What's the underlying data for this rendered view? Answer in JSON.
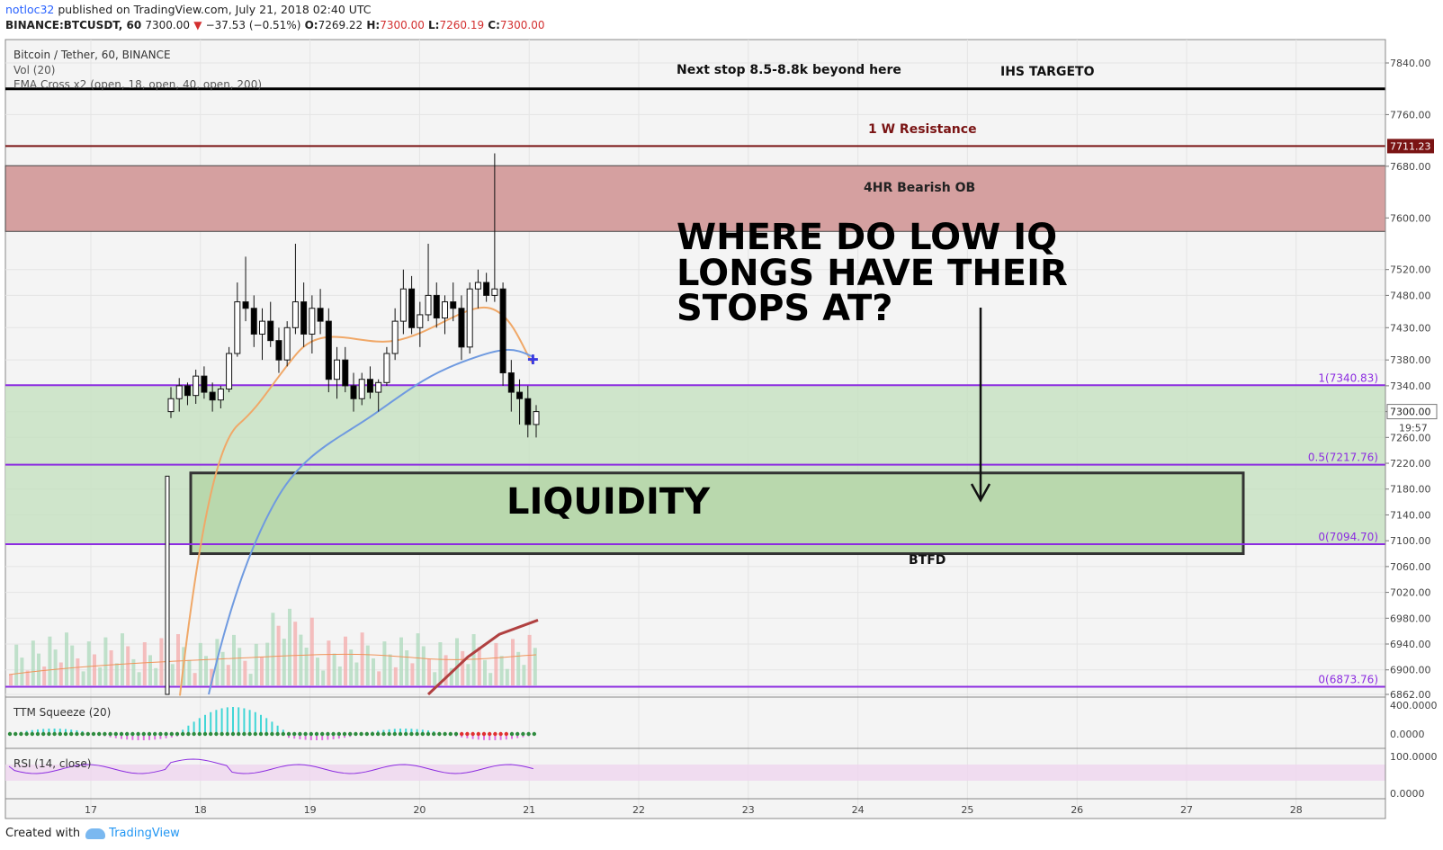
{
  "header": {
    "author": "notloc32",
    "published": "published on TradingView.com, July 21, 2018 02:40 UTC"
  },
  "ohlc": {
    "symbol": "BINANCE:BTCUSDT, 60",
    "last": "7300.00",
    "change": "−37.53 (−0.51%)",
    "o_label": "O:",
    "o": "7269.22",
    "h_label": "H:",
    "h": "7300.00",
    "l_label": "L:",
    "l": "7260.19",
    "c_label": "C:",
    "c": "7300.00"
  },
  "legend": {
    "title": "Bitcoin / Tether, 60, BINANCE",
    "vol": "Vol (20)",
    "ema": "EMA Cross x2 (open, 18, open, 40, open, 200)",
    "ttm": "TTM Squeeze (20)",
    "rsi": "RSI (14, close)"
  },
  "footer": {
    "created": "Created with",
    "brand": "TradingView"
  },
  "colors": {
    "candle_up": "#ffffff",
    "candle_down": "#000000",
    "ema_fast": "#f0a868",
    "ema_mid": "#6f9ae0",
    "ema_slow": "#b04040",
    "fib": "#8c2ce0",
    "resistance": "#7a1414",
    "ob_zone": "#d5a0a0",
    "fib_zone": "#c8e2c3",
    "liquidity_box": "#b9d8ad"
  },
  "chart_data": {
    "type": "candlestick",
    "x_axis": {
      "labels": [
        "17",
        "18",
        "19",
        "20",
        "21",
        "22",
        "23",
        "24",
        "25",
        "26",
        "27",
        "28"
      ]
    },
    "y_axis": {
      "range": [
        6860,
        7860
      ],
      "ticks": [
        "7840.00",
        "7760.00",
        "7680.00",
        "7600.00",
        "7520.00",
        "7480.00",
        "7430.00",
        "7380.00",
        "7340.00",
        "7300.00",
        "7260.00",
        "7220.00",
        "7180.00",
        "7140.00",
        "7100.00",
        "7060.00",
        "7020.00",
        "6980.00",
        "6940.00",
        "6900.00",
        "6862.00"
      ],
      "price_tag": "7711.23",
      "countdown": "19:57"
    },
    "levels": [
      {
        "price": 7800,
        "kind": "target"
      },
      {
        "price": 7711.23,
        "kind": "resistance"
      },
      {
        "price": 7340.83,
        "kind": "fib",
        "label": "1(7340.83)"
      },
      {
        "price": 7217.76,
        "kind": "fib",
        "label": "0.5(7217.76)"
      },
      {
        "price": 7094.7,
        "kind": "fib",
        "label": "0(7094.70)"
      },
      {
        "price": 6873.76,
        "kind": "fib",
        "label": "0(6873.76)"
      }
    ],
    "zones": [
      {
        "name": "4HR Bearish OB",
        "from": 7600,
        "to": 7660
      },
      {
        "name": "fib-zone",
        "from": 7094.7,
        "to": 7340.83
      }
    ],
    "annotations": {
      "next_stop": "Next stop 8.5-8.8k beyond here",
      "ihs": "IHS TARGETO",
      "resistance": "1 W Resistance",
      "bearish_ob": "4HR Bearish OB",
      "question": [
        "WHERE DO LOW IQ",
        "LONGS HAVE THEIR",
        "STOPS AT?"
      ],
      "liquidity": "LIQUIDITY",
      "btfd": "BTFD"
    },
    "candles": [
      [
        7300,
        7338,
        7290,
        7320
      ],
      [
        7320,
        7352,
        7300,
        7340
      ],
      [
        7340,
        7345,
        7310,
        7325
      ],
      [
        7325,
        7365,
        7312,
        7355
      ],
      [
        7355,
        7370,
        7320,
        7330
      ],
      [
        7330,
        7345,
        7300,
        7318
      ],
      [
        7318,
        7340,
        7305,
        7335
      ],
      [
        7335,
        7400,
        7330,
        7390
      ],
      [
        7390,
        7500,
        7385,
        7470
      ],
      [
        7470,
        7540,
        7440,
        7460
      ],
      [
        7460,
        7480,
        7400,
        7420
      ],
      [
        7420,
        7460,
        7380,
        7440
      ],
      [
        7440,
        7470,
        7400,
        7410
      ],
      [
        7410,
        7430,
        7360,
        7380
      ],
      [
        7380,
        7440,
        7370,
        7430
      ],
      [
        7430,
        7560,
        7420,
        7470
      ],
      [
        7470,
        7500,
        7400,
        7420
      ],
      [
        7420,
        7480,
        7390,
        7460
      ],
      [
        7460,
        7490,
        7420,
        7440
      ],
      [
        7440,
        7460,
        7330,
        7350
      ],
      [
        7350,
        7400,
        7320,
        7380
      ],
      [
        7380,
        7400,
        7330,
        7340
      ],
      [
        7340,
        7360,
        7300,
        7320
      ],
      [
        7320,
        7360,
        7310,
        7350
      ],
      [
        7350,
        7370,
        7320,
        7330
      ],
      [
        7330,
        7350,
        7300,
        7345
      ],
      [
        7345,
        7400,
        7340,
        7390
      ],
      [
        7390,
        7460,
        7380,
        7440
      ],
      [
        7440,
        7520,
        7420,
        7490
      ],
      [
        7490,
        7510,
        7420,
        7430
      ],
      [
        7430,
        7470,
        7400,
        7450
      ],
      [
        7450,
        7560,
        7440,
        7480
      ],
      [
        7480,
        7500,
        7430,
        7445
      ],
      [
        7445,
        7480,
        7420,
        7470
      ],
      [
        7470,
        7500,
        7440,
        7460
      ],
      [
        7460,
        7480,
        7380,
        7400
      ],
      [
        7400,
        7500,
        7390,
        7490
      ],
      [
        7490,
        7520,
        7460,
        7500
      ],
      [
        7500,
        7515,
        7470,
        7480
      ],
      [
        7480,
        7700,
        7470,
        7490
      ],
      [
        7490,
        7500,
        7340,
        7360
      ],
      [
        7360,
        7380,
        7300,
        7330
      ],
      [
        7330,
        7350,
        7280,
        7320
      ],
      [
        7320,
        7340,
        7260,
        7280
      ],
      [
        7280,
        7310,
        7260,
        7300
      ]
    ]
  }
}
